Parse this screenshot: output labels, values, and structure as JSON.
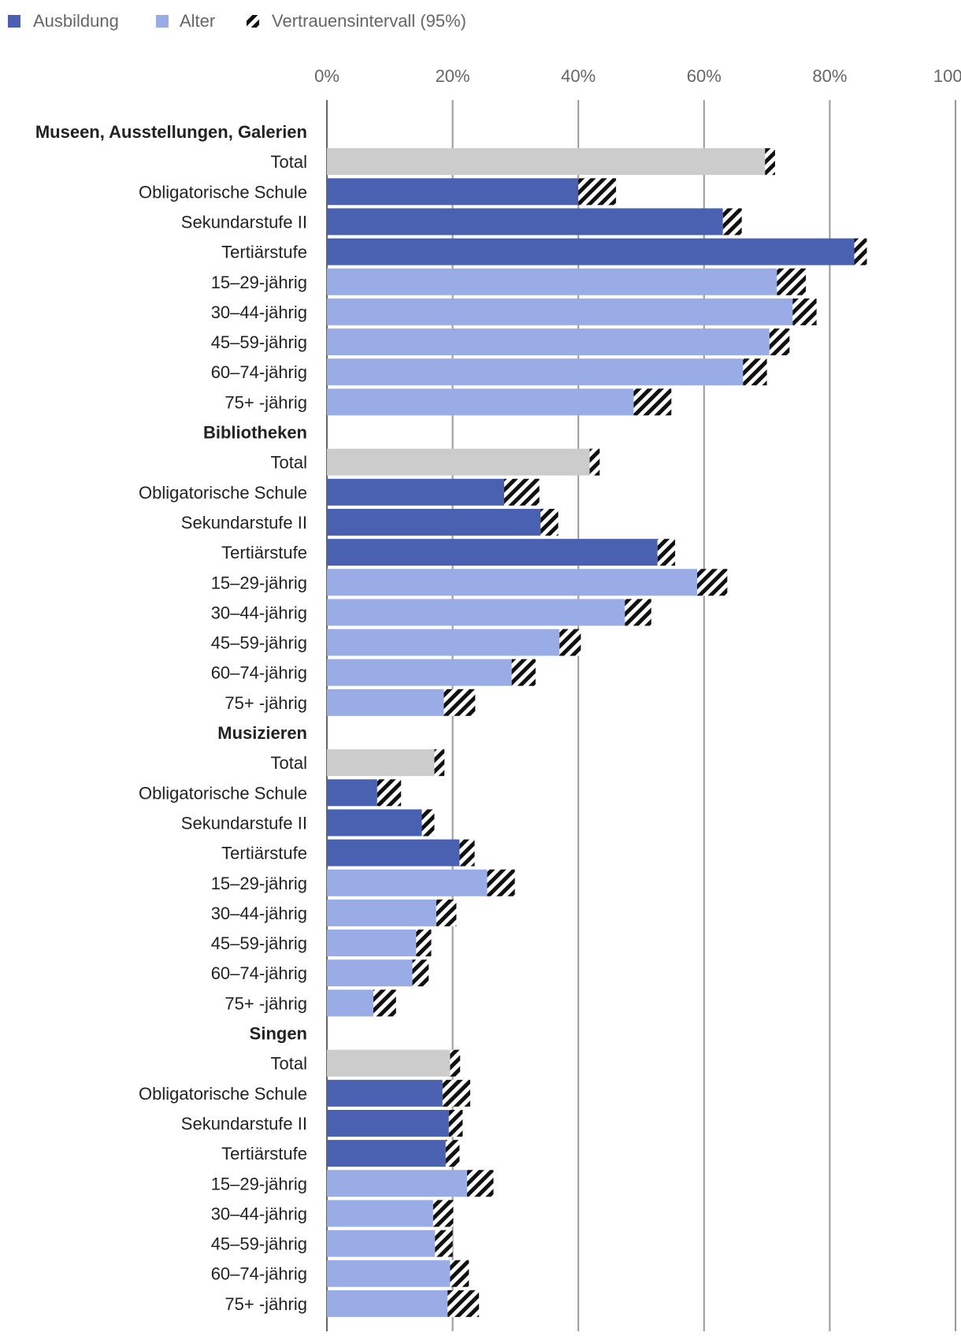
{
  "chart_data": {
    "type": "bar",
    "orientation": "horizontal",
    "title": "",
    "xlabel": "",
    "ylabel": "",
    "xlim": [
      0,
      100
    ],
    "x_tick_labels": [
      "0%",
      "20%",
      "40%",
      "60%",
      "80%",
      "100%"
    ],
    "grid": true,
    "legend_position": "top-left",
    "legend": [
      {
        "name": "Ausbildung",
        "color": "#4a60b0",
        "swatch": "solid"
      },
      {
        "name": "Alter",
        "color": "#9aace6",
        "swatch": "solid"
      },
      {
        "name": "Vertrauensintervall (95%)",
        "color": "#111111",
        "swatch": "hatched"
      }
    ],
    "colors": {
      "Total": "#cccccc",
      "Ausbildung": "#4a60b0",
      "Alter": "#9aace6",
      "interval": "#111111"
    },
    "groups": [
      {
        "name": "Museen, Ausstellungen, Galerien",
        "rows": [
          {
            "label": "Total",
            "kind": "Total",
            "value": 70.5,
            "ci": [
              69.7,
              71.3
            ]
          },
          {
            "label": "Obligatorische Schule",
            "kind": "Ausbildung",
            "value": 43.0,
            "ci": [
              40.0,
              46.0
            ]
          },
          {
            "label": "Sekundarstufe II",
            "kind": "Ausbildung",
            "value": 64.5,
            "ci": [
              63.0,
              66.0
            ]
          },
          {
            "label": "Tertiärstufe",
            "kind": "Ausbildung",
            "value": 84.9,
            "ci": [
              83.9,
              85.9
            ]
          },
          {
            "label": "15–29-jährig",
            "kind": "Alter",
            "value": 73.9,
            "ci": [
              71.6,
              76.2
            ]
          },
          {
            "label": "30–44-jährig",
            "kind": "Alter",
            "value": 76.0,
            "ci": [
              74.1,
              77.9
            ]
          },
          {
            "label": "45–59-jährig",
            "kind": "Alter",
            "value": 72.0,
            "ci": [
              70.4,
              73.6
            ]
          },
          {
            "label": "60–74-jährig",
            "kind": "Alter",
            "value": 68.1,
            "ci": [
              66.2,
              70.0
            ]
          },
          {
            "label": "75+ -jährig",
            "kind": "Alter",
            "value": 51.8,
            "ci": [
              48.8,
              54.8
            ]
          }
        ]
      },
      {
        "name": "Bibliotheken",
        "rows": [
          {
            "label": "Total",
            "kind": "Total",
            "value": 42.6,
            "ci": [
              41.8,
              43.4
            ]
          },
          {
            "label": "Obligatorische Schule",
            "kind": "Ausbildung",
            "value": 31.0,
            "ci": [
              28.2,
              33.8
            ]
          },
          {
            "label": "Sekundarstufe II",
            "kind": "Ausbildung",
            "value": 35.4,
            "ci": [
              34.0,
              36.8
            ]
          },
          {
            "label": "Tertiärstufe",
            "kind": "Ausbildung",
            "value": 54.0,
            "ci": [
              52.6,
              55.4
            ]
          },
          {
            "label": "15–29-jährig",
            "kind": "Alter",
            "value": 61.3,
            "ci": [
              58.9,
              63.7
            ]
          },
          {
            "label": "30–44-jährig",
            "kind": "Alter",
            "value": 49.5,
            "ci": [
              47.4,
              51.6
            ]
          },
          {
            "label": "45–59-jährig",
            "kind": "Alter",
            "value": 38.7,
            "ci": [
              37.0,
              40.4
            ]
          },
          {
            "label": "60–74-jährig",
            "kind": "Alter",
            "value": 31.3,
            "ci": [
              29.4,
              33.2
            ]
          },
          {
            "label": "75+ -jährig",
            "kind": "Alter",
            "value": 21.1,
            "ci": [
              18.6,
              23.6
            ]
          }
        ]
      },
      {
        "name": "Musizieren",
        "rows": [
          {
            "label": "Total",
            "kind": "Total",
            "value": 17.9,
            "ci": [
              17.1,
              18.7
            ]
          },
          {
            "label": "Obligatorische Schule",
            "kind": "Ausbildung",
            "value": 9.9,
            "ci": [
              8.0,
              11.8
            ]
          },
          {
            "label": "Sekundarstufe II",
            "kind": "Ausbildung",
            "value": 16.1,
            "ci": [
              15.1,
              17.1
            ]
          },
          {
            "label": "Tertiärstufe",
            "kind": "Ausbildung",
            "value": 22.3,
            "ci": [
              21.1,
              23.5
            ]
          },
          {
            "label": "15–29-jährig",
            "kind": "Alter",
            "value": 27.7,
            "ci": [
              25.5,
              29.9
            ]
          },
          {
            "label": "30–44-jährig",
            "kind": "Alter",
            "value": 19.0,
            "ci": [
              17.4,
              20.6
            ]
          },
          {
            "label": "45–59-jährig",
            "kind": "Alter",
            "value": 15.4,
            "ci": [
              14.2,
              16.6
            ]
          },
          {
            "label": "60–74-jährig",
            "kind": "Alter",
            "value": 14.9,
            "ci": [
              13.6,
              16.2
            ]
          },
          {
            "label": "75+ -jährig",
            "kind": "Alter",
            "value": 9.2,
            "ci": [
              7.4,
              11.0
            ]
          }
        ]
      },
      {
        "name": "Singen",
        "rows": [
          {
            "label": "Total",
            "kind": "Total",
            "value": 20.4,
            "ci": [
              19.6,
              21.2
            ]
          },
          {
            "label": "Obligatorische Schule",
            "kind": "Ausbildung",
            "value": 20.6,
            "ci": [
              18.4,
              22.8
            ]
          },
          {
            "label": "Sekundarstufe II",
            "kind": "Ausbildung",
            "value": 20.5,
            "ci": [
              19.4,
              21.6
            ]
          },
          {
            "label": "Tertiärstufe",
            "kind": "Ausbildung",
            "value": 20.0,
            "ci": [
              18.9,
              21.1
            ]
          },
          {
            "label": "15–29-jährig",
            "kind": "Alter",
            "value": 24.4,
            "ci": [
              22.3,
              26.5
            ]
          },
          {
            "label": "30–44-jährig",
            "kind": "Alter",
            "value": 18.5,
            "ci": [
              16.9,
              20.1
            ]
          },
          {
            "label": "45–59-jährig",
            "kind": "Alter",
            "value": 18.6,
            "ci": [
              17.2,
              20.0
            ]
          },
          {
            "label": "60–74-jährig",
            "kind": "Alter",
            "value": 21.1,
            "ci": [
              19.6,
              22.6
            ]
          },
          {
            "label": "75+ -jährig",
            "kind": "Alter",
            "value": 21.7,
            "ci": [
              19.2,
              24.2
            ]
          }
        ]
      }
    ]
  }
}
